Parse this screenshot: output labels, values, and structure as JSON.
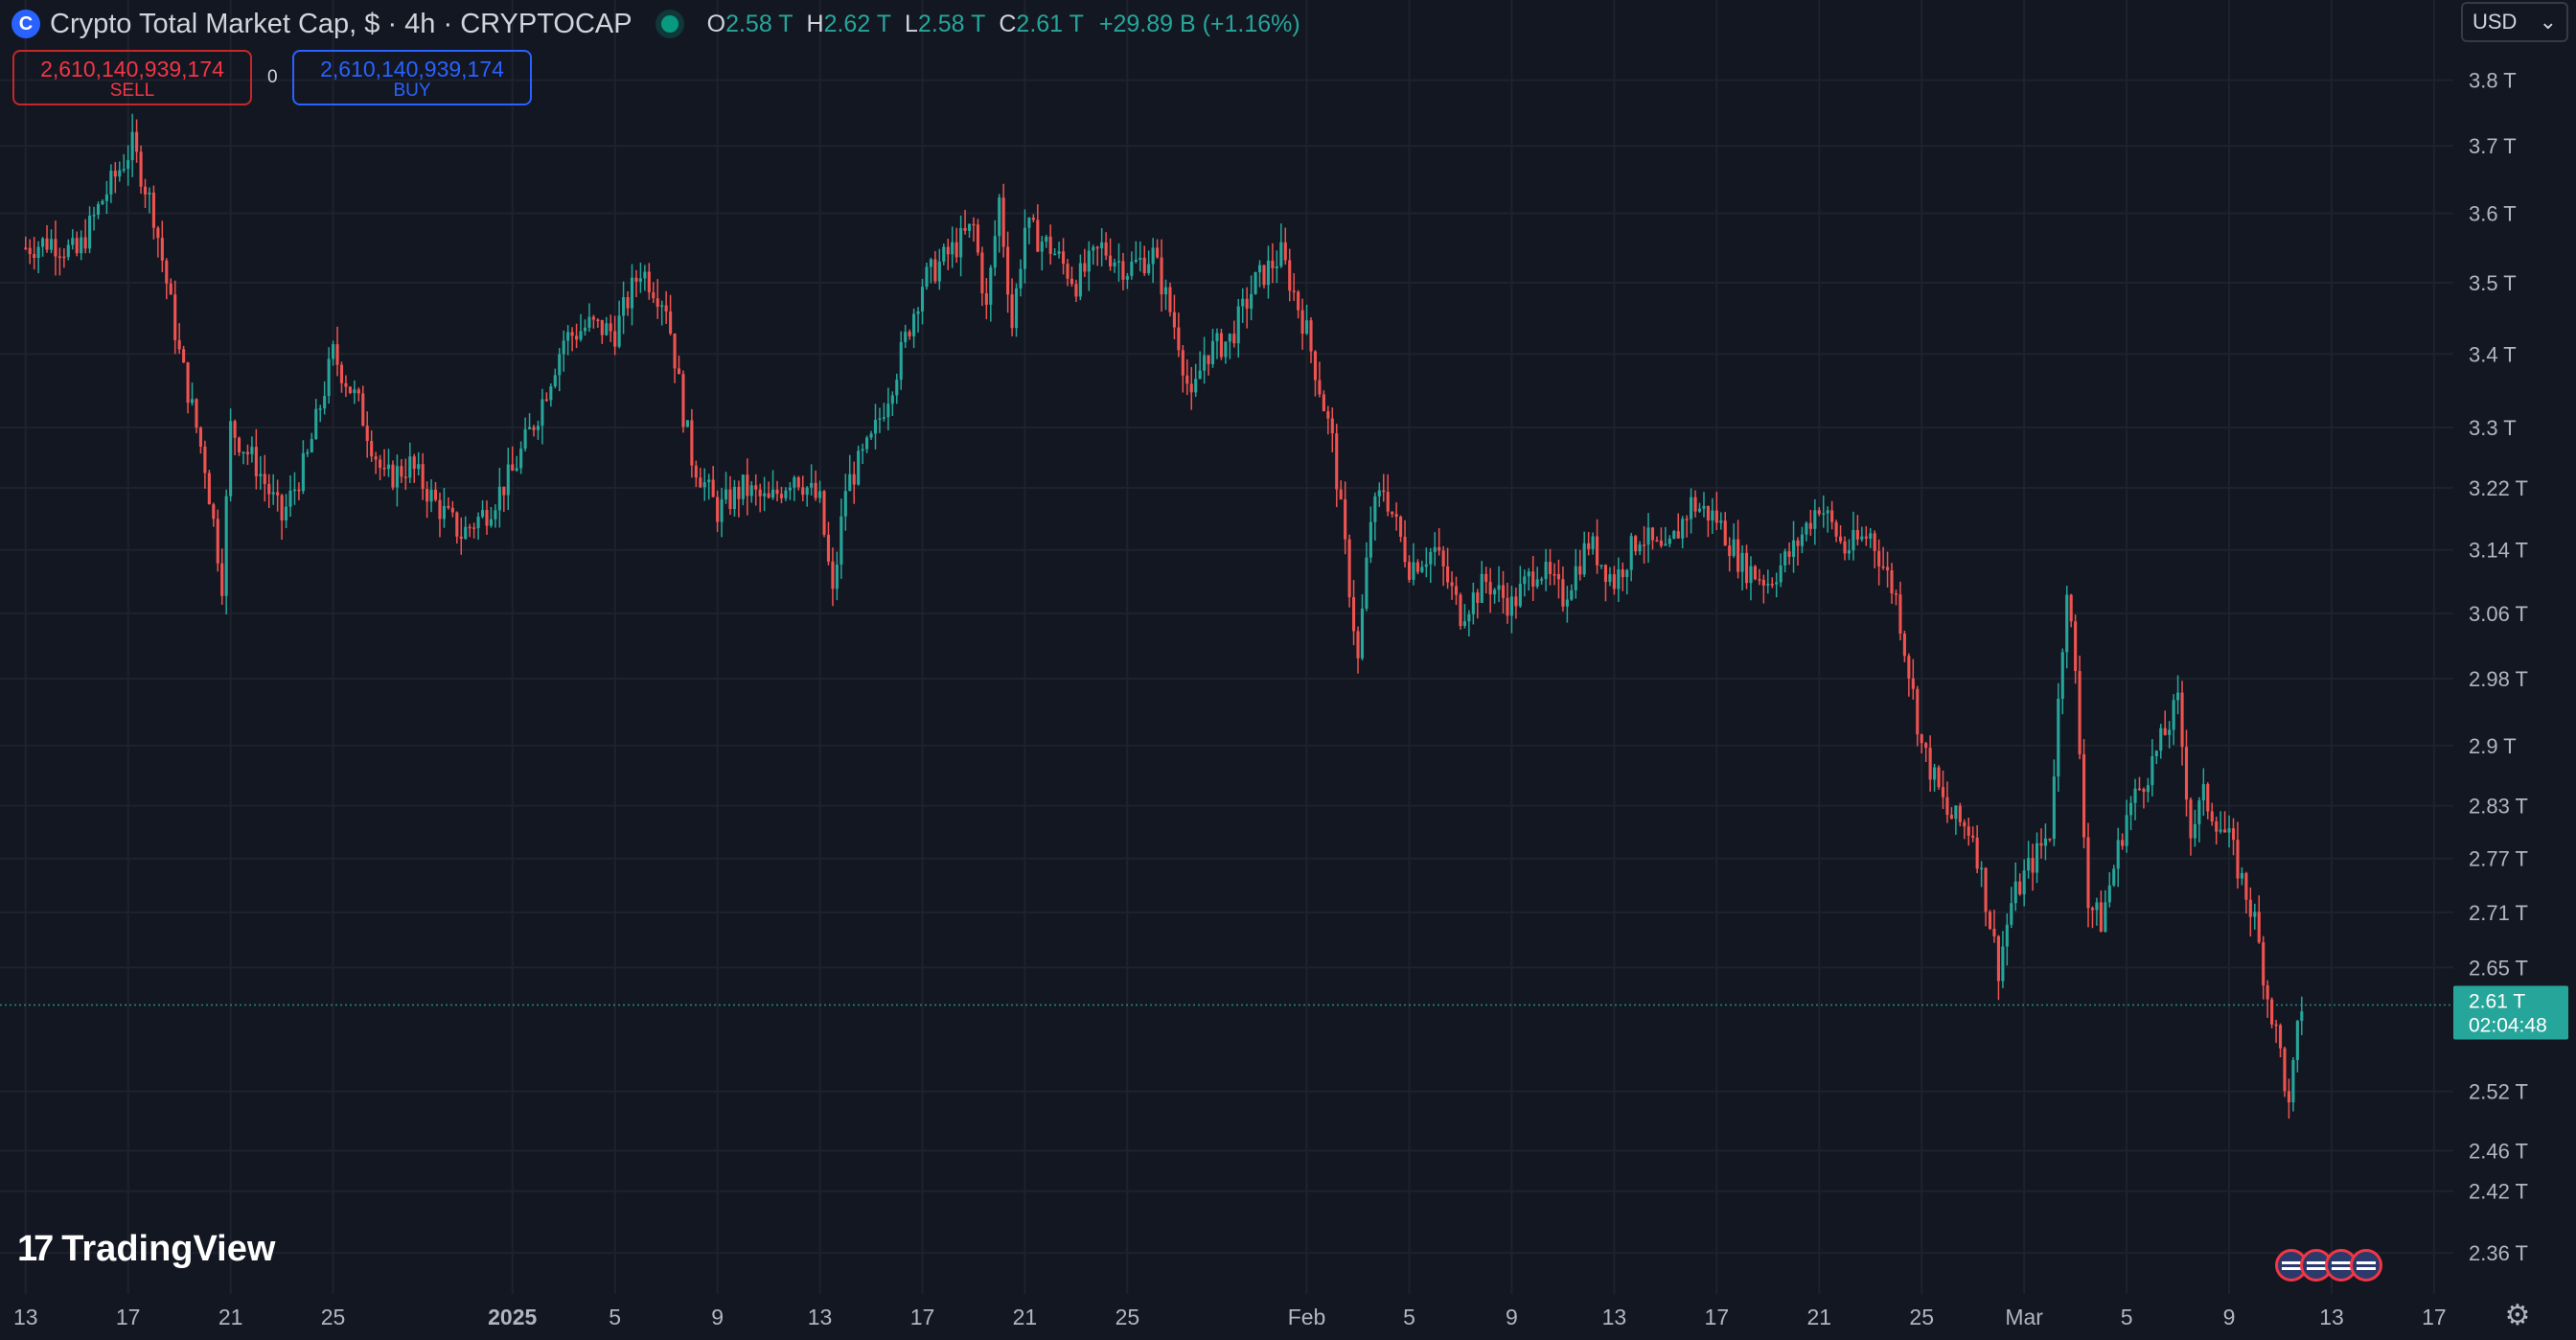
{
  "header": {
    "symbol_icon": "C",
    "title": "Crypto Total Market Cap, $ · 4h · CRYPTOCAP",
    "ohlc": [
      {
        "key": "O",
        "value": "2.58 T"
      },
      {
        "key": "H",
        "value": "2.62 T"
      },
      {
        "key": "L",
        "value": "2.58 T"
      },
      {
        "key": "C",
        "value": "2.61 T"
      }
    ],
    "change": "+29.89 B (+1.16%)"
  },
  "trade": {
    "sell_price": "2,610,140,939,174",
    "sell_label": "SELL",
    "spread": "0",
    "buy_price": "2,610,140,939,174",
    "buy_label": "BUY"
  },
  "currency": {
    "value": "USD",
    "icon": "chevron-down-icon"
  },
  "logo": {
    "mark": "17",
    "text": "TradingView"
  },
  "price_tag": {
    "price": "2.61 T",
    "countdown": "02:04:48"
  },
  "events": {
    "icon": "us-flag-icon",
    "count": 4
  },
  "settings_icon": "gear-icon",
  "colors": {
    "up": "#26a69a",
    "down": "#ef5350",
    "background": "#131722",
    "grid": "#1e222d",
    "accent": "#2962ff"
  },
  "chart_data": {
    "type": "candlestick",
    "timeframe": "4h",
    "yscale": "log",
    "y_tick_labels": [
      "3.8 T",
      "3.7 T",
      "3.6 T",
      "3.5 T",
      "3.4 T",
      "3.3 T",
      "3.22 T",
      "3.14 T",
      "3.06 T",
      "2.98 T",
      "2.9 T",
      "2.83 T",
      "2.77 T",
      "2.71 T",
      "2.65 T",
      "2.52 T",
      "2.46 T",
      "2.42 T",
      "2.36 T"
    ],
    "y_tick_values": [
      3.8,
      3.7,
      3.6,
      3.5,
      3.4,
      3.3,
      3.22,
      3.14,
      3.06,
      2.98,
      2.9,
      2.83,
      2.77,
      2.71,
      2.65,
      2.52,
      2.46,
      2.42,
      2.36
    ],
    "ylim": [
      2.33,
      3.85
    ],
    "x_tick_labels": [
      "13",
      "17",
      "21",
      "25",
      "2025",
      "5",
      "9",
      "13",
      "17",
      "21",
      "25",
      "Feb",
      "5",
      "9",
      "13",
      "17",
      "21",
      "25",
      "Mar",
      "5",
      "9",
      "13",
      "17"
    ],
    "x_tick_dates": [
      "2024-12-13",
      "2024-12-17",
      "2024-12-21",
      "2024-12-25",
      "2025-01-01",
      "2025-01-05",
      "2025-01-09",
      "2025-01-13",
      "2025-01-17",
      "2025-01-21",
      "2025-01-25",
      "2025-02-01",
      "2025-02-05",
      "2025-02-09",
      "2025-02-13",
      "2025-02-17",
      "2025-02-21",
      "2025-02-25",
      "2025-03-01",
      "2025-03-05",
      "2025-03-09",
      "2025-03-13",
      "2025-03-17"
    ],
    "last_price": 2.61,
    "close_path": [
      [
        "2024-12-13 00:00",
        3.55
      ],
      [
        "2024-12-14 00:00",
        3.56
      ],
      [
        "2024-12-15 00:00",
        3.54
      ],
      [
        "2024-12-16 00:00",
        3.62
      ],
      [
        "2024-12-17 04:00",
        3.7
      ],
      [
        "2024-12-18 00:00",
        3.6
      ],
      [
        "2024-12-19 00:00",
        3.4
      ],
      [
        "2024-12-20 00:00",
        3.25
      ],
      [
        "2024-12-20 16:00",
        3.1
      ],
      [
        "2024-12-21 00:00",
        3.3
      ],
      [
        "2024-12-22 00:00",
        3.25
      ],
      [
        "2024-12-23 00:00",
        3.18
      ],
      [
        "2024-12-24 00:00",
        3.26
      ],
      [
        "2024-12-25 00:00",
        3.4
      ],
      [
        "2024-12-26 00:00",
        3.33
      ],
      [
        "2024-12-27 00:00",
        3.23
      ],
      [
        "2024-12-28 00:00",
        3.25
      ],
      [
        "2024-12-29 00:00",
        3.2
      ],
      [
        "2024-12-30 00:00",
        3.16
      ],
      [
        "2024-12-31 00:00",
        3.19
      ],
      [
        "2025-01-01 00:00",
        3.24
      ],
      [
        "2025-01-02 00:00",
        3.32
      ],
      [
        "2025-01-03 00:00",
        3.42
      ],
      [
        "2025-01-04 00:00",
        3.44
      ],
      [
        "2025-01-05 00:00",
        3.43
      ],
      [
        "2025-01-06 00:00",
        3.52
      ],
      [
        "2025-01-07 00:00",
        3.47
      ],
      [
        "2025-01-07 16:00",
        3.32
      ],
      [
        "2025-01-08 00:00",
        3.26
      ],
      [
        "2025-01-09 00:00",
        3.19
      ],
      [
        "2025-01-10 00:00",
        3.22
      ],
      [
        "2025-01-11 00:00",
        3.2
      ],
      [
        "2025-01-12 00:00",
        3.24
      ],
      [
        "2025-01-13 00:00",
        3.2
      ],
      [
        "2025-01-13 12:00",
        3.08
      ],
      [
        "2025-01-14 00:00",
        3.22
      ],
      [
        "2025-01-15 00:00",
        3.28
      ],
      [
        "2025-01-16 00:00",
        3.38
      ],
      [
        "2025-01-17 00:00",
        3.5
      ],
      [
        "2025-01-18 00:00",
        3.54
      ],
      [
        "2025-01-19 00:00",
        3.58
      ],
      [
        "2025-01-19 12:00",
        3.46
      ],
      [
        "2025-01-20 00:00",
        3.62
      ],
      [
        "2025-01-20 12:00",
        3.44
      ],
      [
        "2025-01-21 00:00",
        3.58
      ],
      [
        "2025-01-22 00:00",
        3.55
      ],
      [
        "2025-01-23 00:00",
        3.5
      ],
      [
        "2025-01-24 00:00",
        3.55
      ],
      [
        "2025-01-25 00:00",
        3.52
      ],
      [
        "2025-01-26 00:00",
        3.54
      ],
      [
        "2025-01-27 00:00",
        3.42
      ],
      [
        "2025-01-27 12:00",
        3.33
      ],
      [
        "2025-01-28 00:00",
        3.4
      ],
      [
        "2025-01-29 00:00",
        3.42
      ],
      [
        "2025-01-30 00:00",
        3.5
      ],
      [
        "2025-01-31 00:00",
        3.54
      ],
      [
        "2025-02-01 00:00",
        3.43
      ],
      [
        "2025-02-02 00:00",
        3.28
      ],
      [
        "2025-02-03 00:00",
        3.0
      ],
      [
        "2025-02-03 12:00",
        3.18
      ],
      [
        "2025-02-04 00:00",
        3.22
      ],
      [
        "2025-02-05 00:00",
        3.12
      ],
      [
        "2025-02-06 00:00",
        3.14
      ],
      [
        "2025-02-07 00:00",
        3.06
      ],
      [
        "2025-02-08 00:00",
        3.1
      ],
      [
        "2025-02-09 00:00",
        3.07
      ],
      [
        "2025-02-10 00:00",
        3.12
      ],
      [
        "2025-02-11 00:00",
        3.08
      ],
      [
        "2025-02-12 00:00",
        3.15
      ],
      [
        "2025-02-13 00:00",
        3.1
      ],
      [
        "2025-02-14 00:00",
        3.16
      ],
      [
        "2025-02-15 00:00",
        3.13
      ],
      [
        "2025-02-16 00:00",
        3.2
      ],
      [
        "2025-02-17 00:00",
        3.18
      ],
      [
        "2025-02-18 00:00",
        3.12
      ],
      [
        "2025-02-19 00:00",
        3.1
      ],
      [
        "2025-02-20 00:00",
        3.14
      ],
      [
        "2025-02-21 00:00",
        3.2
      ],
      [
        "2025-02-22 00:00",
        3.14
      ],
      [
        "2025-02-23 00:00",
        3.16
      ],
      [
        "2025-02-24 00:00",
        3.08
      ],
      [
        "2025-02-25 00:00",
        2.9
      ],
      [
        "2025-02-26 00:00",
        2.82
      ],
      [
        "2025-02-27 00:00",
        2.8
      ],
      [
        "2025-02-28 00:00",
        2.65
      ],
      [
        "2025-02-28 12:00",
        2.72
      ],
      [
        "2025-03-01 00:00",
        2.75
      ],
      [
        "2025-03-02 00:00",
        2.8
      ],
      [
        "2025-03-02 16:00",
        3.1
      ],
      [
        "2025-03-03 00:00",
        2.98
      ],
      [
        "2025-03-03 12:00",
        2.72
      ],
      [
        "2025-03-04 00:00",
        2.7
      ],
      [
        "2025-03-05 00:00",
        2.82
      ],
      [
        "2025-03-06 00:00",
        2.88
      ],
      [
        "2025-03-07 00:00",
        2.95
      ],
      [
        "2025-03-07 12:00",
        2.8
      ],
      [
        "2025-03-08 00:00",
        2.84
      ],
      [
        "2025-03-09 00:00",
        2.79
      ],
      [
        "2025-03-10 00:00",
        2.7
      ],
      [
        "2025-03-10 12:00",
        2.62
      ],
      [
        "2025-03-11 00:00",
        2.56
      ],
      [
        "2025-03-11 08:00",
        2.5
      ],
      [
        "2025-03-11 16:00",
        2.58
      ],
      [
        "2025-03-11 20:00",
        2.61
      ]
    ]
  }
}
